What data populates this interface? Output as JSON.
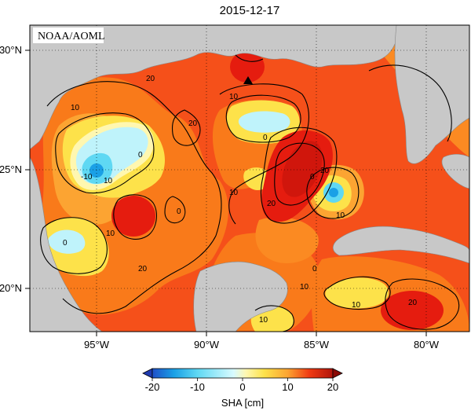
{
  "title": "2015-12-17",
  "credit": "NOAA/AOML",
  "colorbar": {
    "label": "SHA [cm]",
    "ticks": [
      "-20",
      "-10",
      "0",
      "10",
      "20"
    ],
    "range": [
      -20,
      20
    ]
  },
  "axes": {
    "lon_labels": [
      "95°W",
      "90°W",
      "85°W",
      "80°W"
    ],
    "lat_labels": [
      "30°N",
      "25°N",
      "20°N"
    ],
    "lon_range": [
      -98,
      -78
    ],
    "lat_range": [
      18,
      31
    ]
  },
  "features": {
    "marker": "black triangle station marker",
    "contour_labels": [
      "20",
      "10",
      "10",
      "0",
      "10",
      "-10",
      "10",
      "0",
      "0",
      "20",
      "10",
      "0",
      "20",
      "10",
      "10",
      "0",
      "10",
      "20",
      "20",
      "10",
      "0",
      "20"
    ]
  },
  "colors": {
    "land": "#c8c8c8",
    "deep_red": "#e51c0f",
    "red": "#f03a12",
    "orange": "#f97a1a",
    "light_orange": "#fca432",
    "yellow": "#fde24a",
    "pale_yellow": "#fff7b0",
    "pale_cyan": "#bff3fb",
    "cyan": "#5fd8f3",
    "blue": "#1aa0e6"
  }
}
